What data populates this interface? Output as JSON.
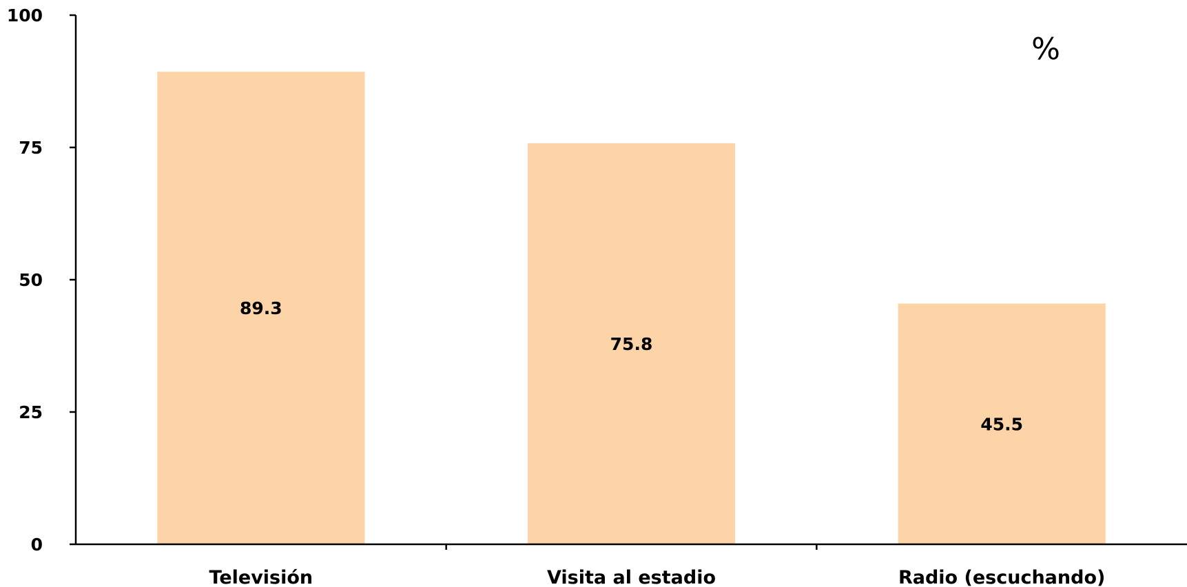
{
  "chart_data": {
    "type": "bar",
    "categories": [
      "Televisión",
      "Visita al estadio",
      "Radio (escuchando)"
    ],
    "values": [
      89.3,
      75.8,
      45.5
    ],
    "value_labels": [
      "89.3",
      "75.8",
      "45.5"
    ],
    "yticks": [
      "0",
      "25",
      "50",
      "75",
      "100"
    ],
    "ylim": [
      0,
      100
    ],
    "unit_annotation": "%",
    "grid": false,
    "legend": "none",
    "bar_color": "#FDD4A7",
    "axis_color": "#000000"
  }
}
